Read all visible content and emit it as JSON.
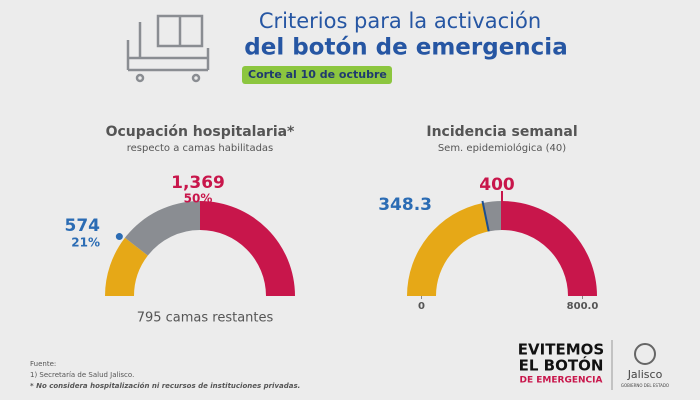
{
  "header": {
    "title_line1": "Criterios para la activación",
    "title_line2": "del botón de emergencia",
    "badge": "Corte al 10 de octubre"
  },
  "chart_data": [
    {
      "type": "gauge",
      "title": "Ocupación hospitalaria*",
      "subtitle": "respecto a camas habilitadas",
      "values": [
        574,
        1369
      ],
      "value_labels": [
        "574",
        "1,369"
      ],
      "shares": [
        21,
        50
      ],
      "share_labels": [
        "21%",
        "50%"
      ],
      "ylim": [
        0,
        100
      ],
      "note": "795 camas restantes",
      "colors": [
        "#e6a817",
        "#8a8d92",
        "#c8164b"
      ],
      "label_colors": [
        "#2b6cb4",
        "#c8164b"
      ]
    },
    {
      "type": "gauge",
      "title": "Incidencia semanal",
      "subtitle": "Sem. epidemiológica (40)",
      "values": [
        348.3,
        400
      ],
      "ylim": [
        0,
        800
      ],
      "yticks": [
        0,
        {
          "value": 800,
          "label": "800.0"
        }
      ],
      "colors": [
        "#e6a817",
        "#8a8d92",
        "#c8164b"
      ],
      "label_colors": [
        "#2b6cb4",
        "#c8164b"
      ]
    }
  ],
  "footer": {
    "source_title": "Fuente:",
    "source": "1) Secretaría de Salud Jalisco.",
    "footnote": "* No considera hospitalización ni recursos de instituciones privadas.",
    "logo_line1": "EVITEMOS",
    "logo_line2": "EL BOTÓN",
    "logo_line3": "DE EMERGENCIA",
    "gov": "Jalisco",
    "gov_sub": "GOBIERNO DEL ESTADO"
  }
}
